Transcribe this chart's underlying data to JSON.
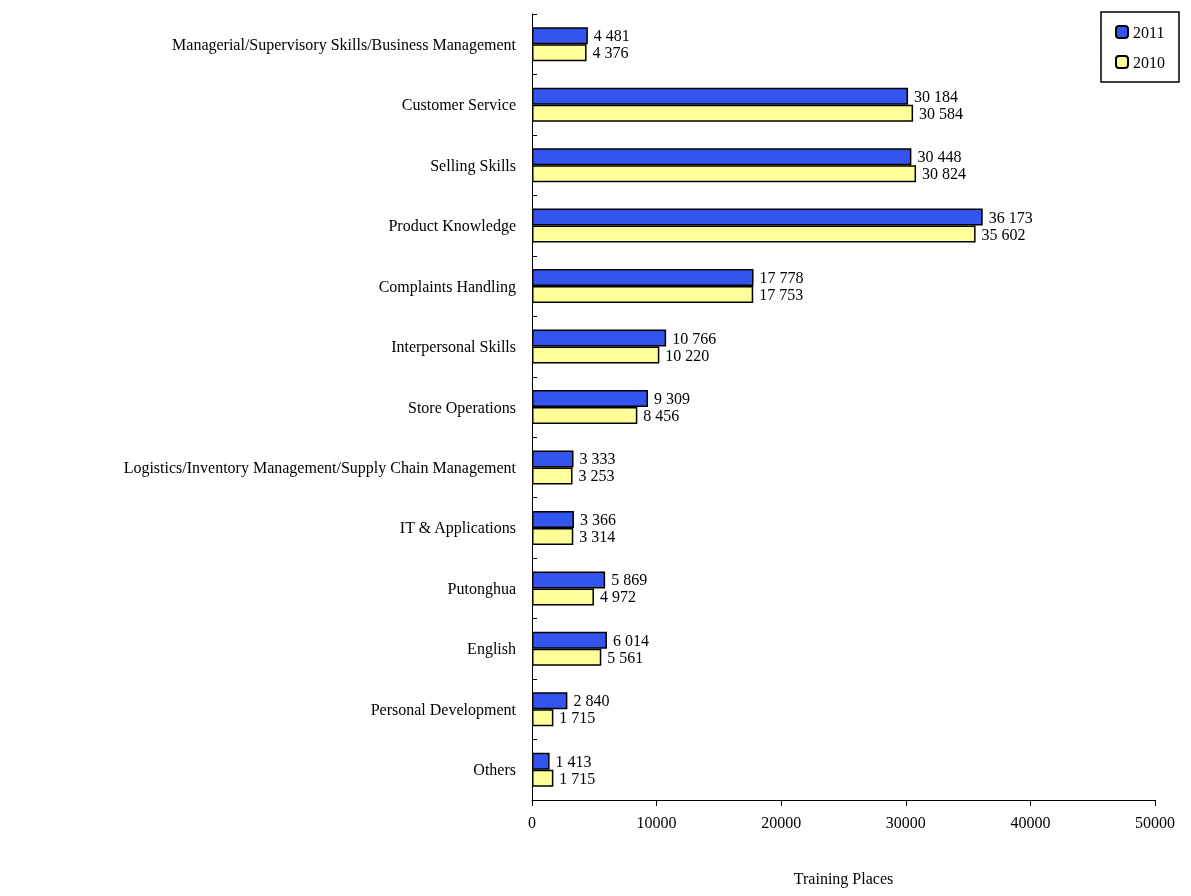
{
  "chart_data": {
    "type": "bar",
    "orientation": "horizontal",
    "xlabel": "Training Places",
    "categories": [
      "Managerial/Supervisory Skills/Business Management",
      "Customer Service",
      "Selling Skills",
      "Product Knowledge",
      "Complaints Handling",
      "Interpersonal Skills",
      "Store Operations",
      "Logistics/Inventory Management/Supply Chain Management",
      "IT & Applications",
      "Putonghua",
      "English",
      "Personal Development",
      "Others"
    ],
    "series": [
      {
        "name": "2011",
        "color": "#3355ee",
        "values": [
          4481,
          30184,
          30448,
          36173,
          17778,
          10766,
          9309,
          3333,
          3366,
          5869,
          6014,
          2840,
          1413
        ],
        "value_labels": [
          "4 481",
          "30 184",
          "30 448",
          "36 173",
          "17 778",
          "10 766",
          "9 309",
          "3 333",
          "3 366",
          "5 869",
          "6 014",
          "2 840",
          "1 413"
        ]
      },
      {
        "name": "2010",
        "color": "#ffff99",
        "values": [
          4376,
          30584,
          30824,
          35602,
          17753,
          10220,
          8456,
          3253,
          3314,
          4972,
          5561,
          1715,
          1715
        ],
        "value_labels": [
          "4 376",
          "30 584",
          "30 824",
          "35 602",
          "17 753",
          "10 220",
          "8 456",
          "3 253",
          "3 314",
          "4 972",
          "5 561",
          "1 715",
          "1 715"
        ]
      }
    ],
    "xlim": [
      0,
      50000
    ],
    "xticks": [
      0,
      10000,
      20000,
      30000,
      40000,
      50000
    ],
    "grid": false,
    "legend": "top right",
    "stacked": false
  }
}
